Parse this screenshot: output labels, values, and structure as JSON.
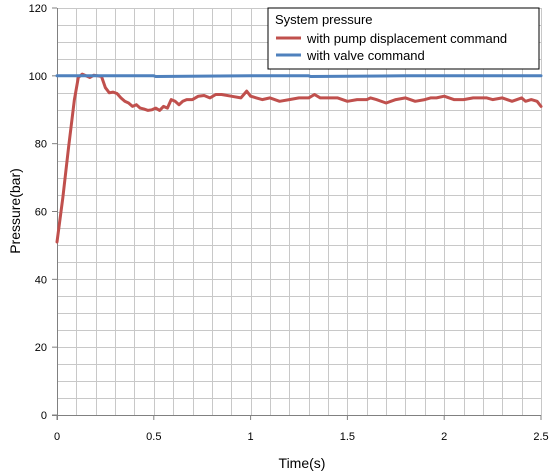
{
  "chart_data": {
    "type": "line",
    "title": "",
    "xlabel": "Time(s)",
    "ylabel": "Pressure(bar)",
    "xlim": [
      0,
      2.5
    ],
    "ylim": [
      0,
      120
    ],
    "x_ticks": [
      0,
      0.5,
      1,
      1.5,
      2,
      2.5
    ],
    "x_tick_labels": [
      "0",
      "0.5",
      "1",
      "1.5",
      "2",
      "2.5"
    ],
    "y_ticks": [
      0,
      20,
      40,
      60,
      80,
      100,
      120
    ],
    "y_tick_labels": [
      "0",
      "20",
      "40",
      "60",
      "80",
      "100",
      "120"
    ],
    "grid": true,
    "legend": {
      "title": "System pressure",
      "placement": "top-right"
    },
    "series": [
      {
        "name": "with pump displacement command",
        "color": "#c0504d",
        "x": [
          0,
          0.03,
          0.06,
          0.09,
          0.11,
          0.13,
          0.15,
          0.17,
          0.19,
          0.21,
          0.23,
          0.25,
          0.27,
          0.29,
          0.31,
          0.33,
          0.35,
          0.37,
          0.39,
          0.41,
          0.43,
          0.45,
          0.47,
          0.49,
          0.51,
          0.53,
          0.55,
          0.57,
          0.59,
          0.61,
          0.63,
          0.65,
          0.67,
          0.7,
          0.73,
          0.76,
          0.79,
          0.82,
          0.85,
          0.9,
          0.95,
          0.98,
          1.0,
          1.03,
          1.06,
          1.1,
          1.15,
          1.2,
          1.25,
          1.3,
          1.33,
          1.36,
          1.4,
          1.45,
          1.5,
          1.55,
          1.6,
          1.62,
          1.65,
          1.7,
          1.75,
          1.8,
          1.85,
          1.9,
          1.93,
          1.96,
          2.0,
          2.05,
          2.1,
          2.15,
          2.2,
          2.22,
          2.25,
          2.3,
          2.35,
          2.4,
          2.42,
          2.45,
          2.48,
          2.5
        ],
        "y": [
          51,
          64,
          79,
          93,
          99.5,
          100.5,
          100,
          99.5,
          100.2,
          100,
          99.8,
          96.5,
          95,
          95.2,
          94.8,
          93.5,
          92.5,
          92,
          91,
          91.5,
          90.5,
          90.2,
          89.8,
          90,
          90.5,
          89.8,
          91,
          90.5,
          93,
          92.5,
          91.5,
          92.5,
          93,
          93,
          94,
          94.2,
          93.5,
          94.5,
          94.5,
          94,
          93.5,
          95.5,
          94,
          93.5,
          93,
          93.5,
          92.5,
          93,
          93.5,
          93.5,
          94.5,
          93.5,
          93.5,
          93.5,
          92.5,
          93,
          93,
          93.5,
          93,
          92,
          93,
          93.5,
          92.5,
          93,
          93.5,
          93.5,
          94,
          93,
          93,
          93.5,
          93.5,
          93.5,
          93,
          93.5,
          92.5,
          93.5,
          92.5,
          93,
          92.5,
          91
        ]
      },
      {
        "name": "with valve command",
        "color": "#4f81bd",
        "x": [
          0,
          0.5,
          0.51,
          1.0,
          1.3,
          1.31,
          1.8,
          2.2,
          2.5
        ],
        "y": [
          100,
          100,
          99.8,
          100,
          100,
          99.8,
          100,
          100,
          100
        ]
      }
    ]
  }
}
